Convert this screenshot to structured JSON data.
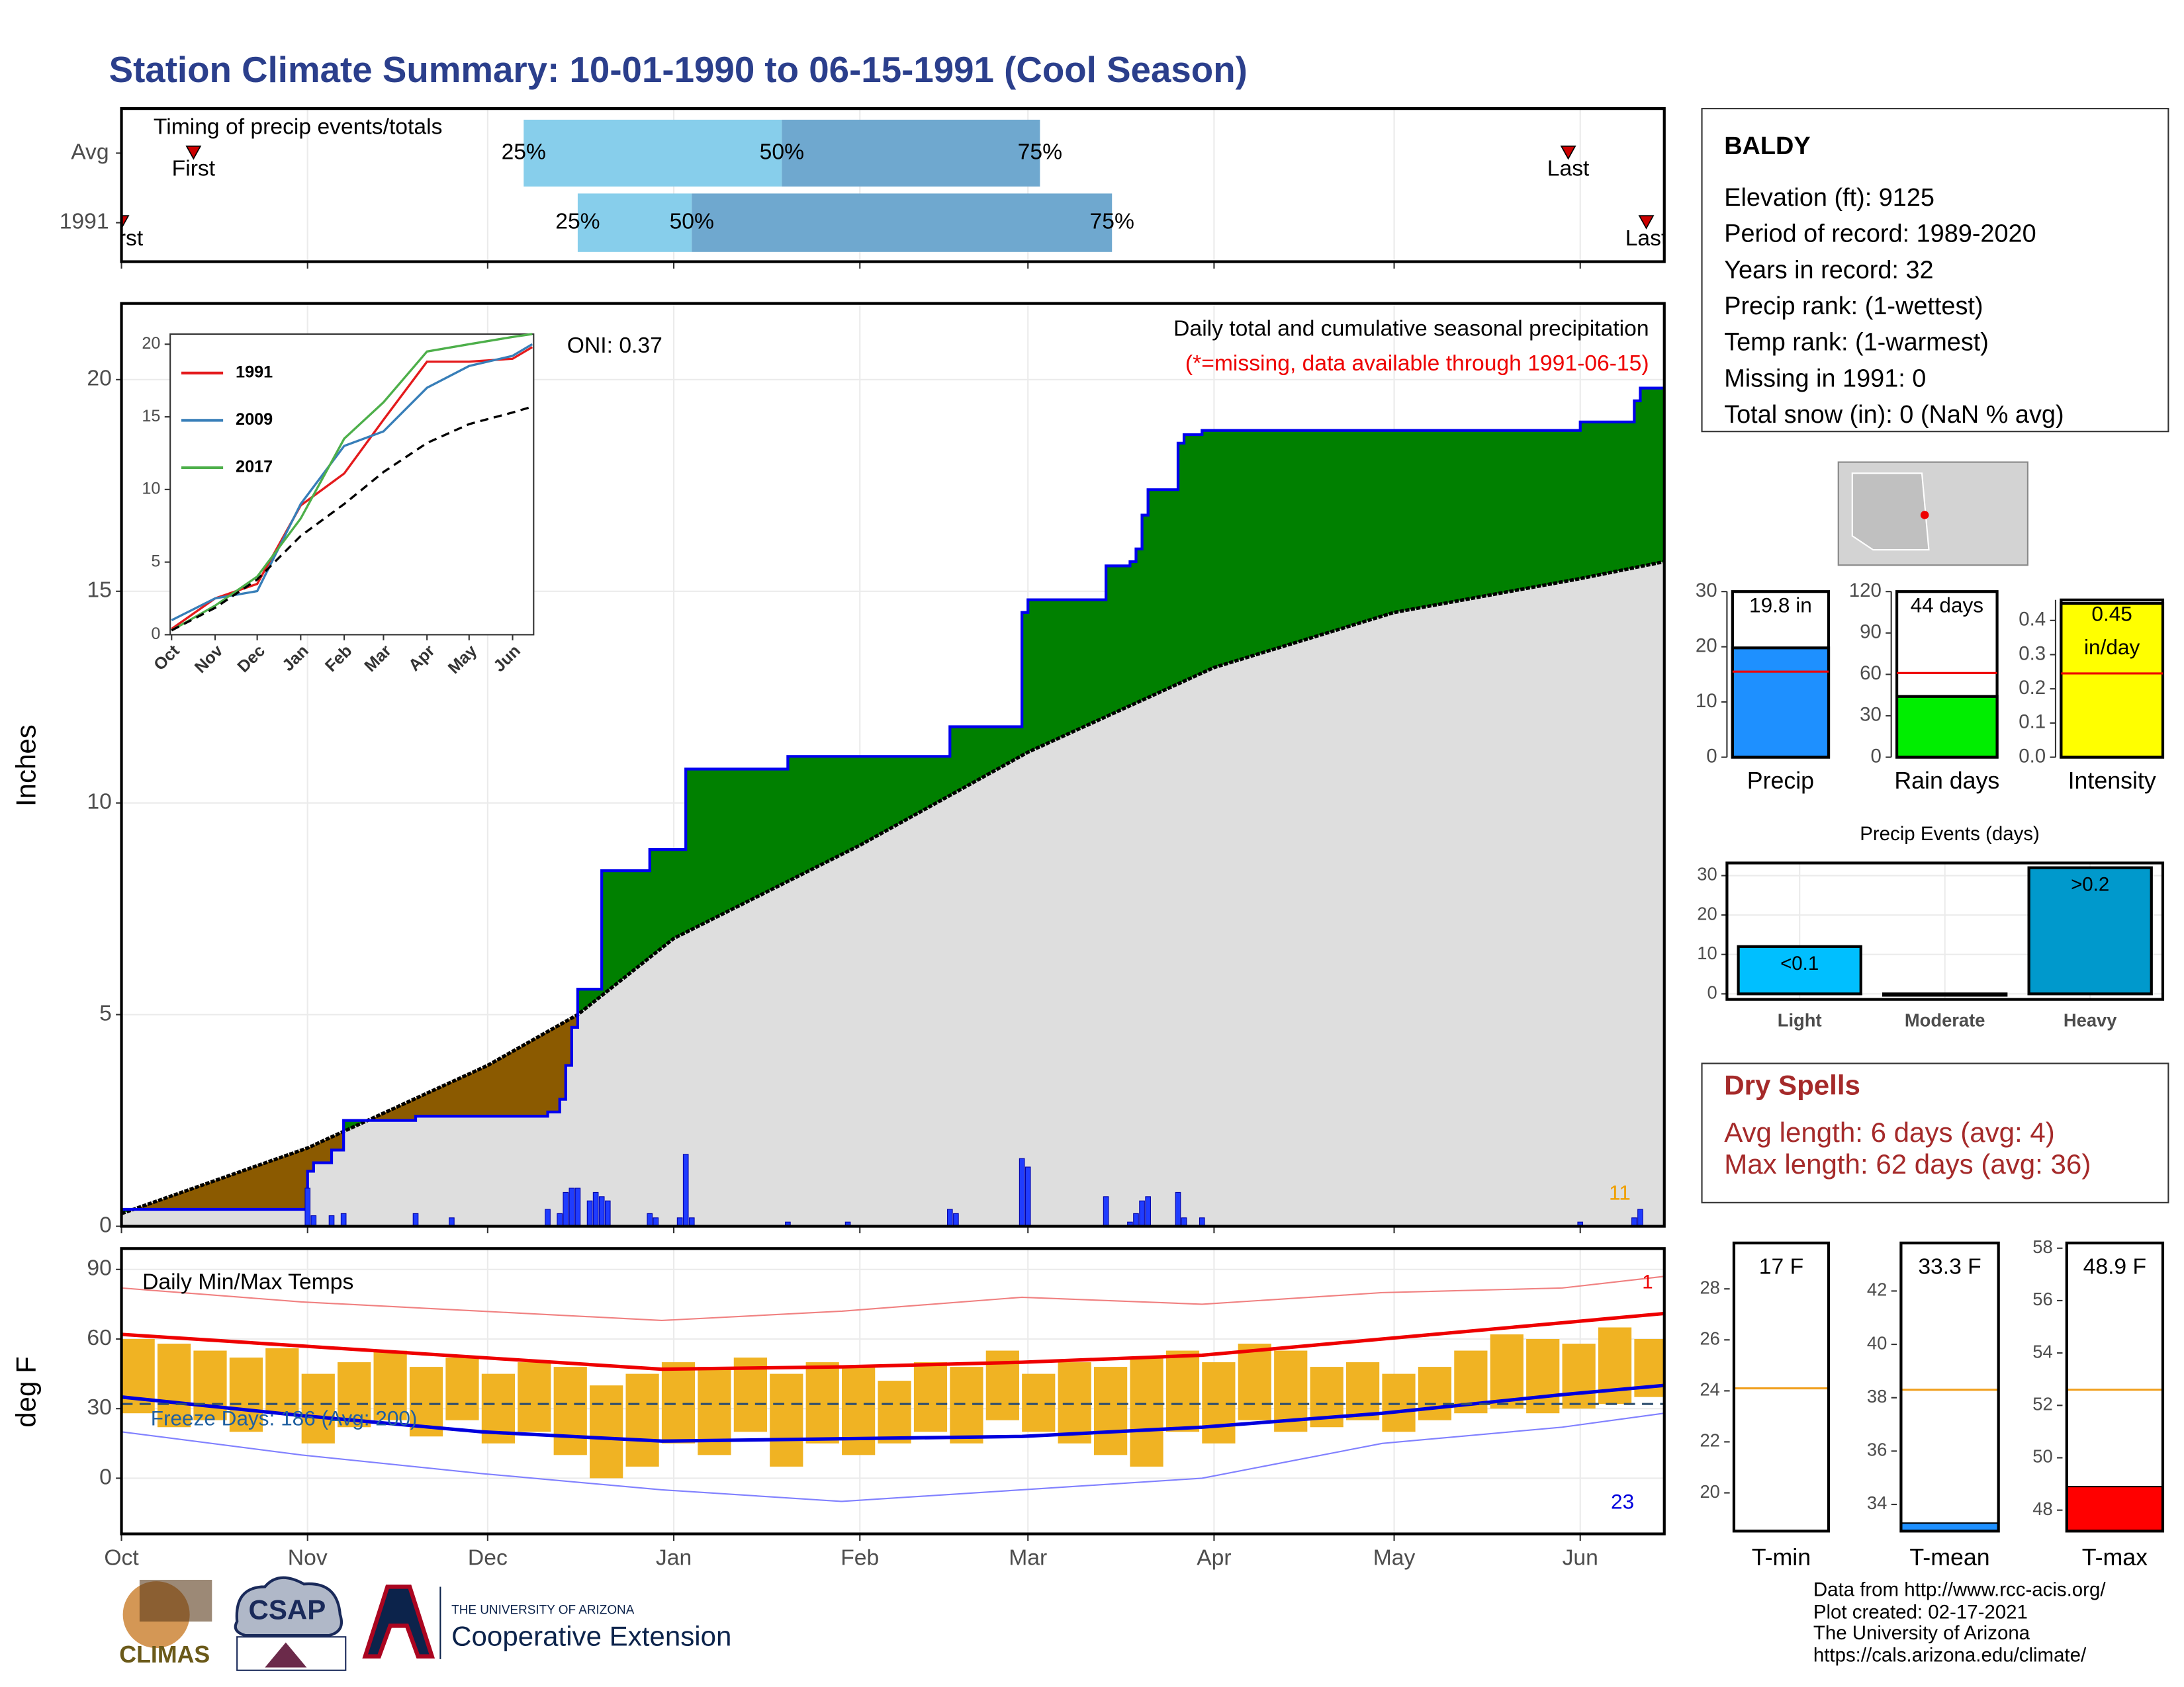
{
  "title": "Station Climate Summary: 10-01-1990 to 06-15-1991 (Cool Season)",
  "station": {
    "name": "BALDY",
    "lines": [
      "Elevation (ft): 9125",
      "Period of record: 1989-2020",
      "Years in record: 32",
      "Precip rank:  (1-wettest)",
      "Temp rank:  (1-warmest)",
      "Missing in 1991: 0",
      "Total snow (in): 0 (NaN % avg)"
    ]
  },
  "dry_spells": {
    "title": "Dry Spells",
    "lines": [
      "Avg length: 6 days (avg: 4)",
      "Max length: 62 days (avg: 36)"
    ]
  },
  "footer": {
    "lines": [
      "Data from http://www.rcc-acis.org/",
      "Plot created: 02-17-2021",
      "The University of Arizona",
      "https://cals.arizona.edu/climate/"
    ],
    "logos": [
      "CLIMAS",
      "CSAP",
      "THE UNIVERSITY OF ARIZONA",
      "Cooperative Extension"
    ]
  },
  "chart_data": [
    {
      "type": "timeline",
      "title": "Timing of precip events/totals",
      "xlim": [
        0,
        257
      ],
      "categories": [
        "Avg",
        "1991"
      ],
      "first": [
        12,
        0
      ],
      "q25": [
        67,
        76
      ],
      "q50": [
        110,
        95
      ],
      "q75": [
        153,
        165
      ],
      "last": [
        241,
        254
      ],
      "quantile_labels": [
        "25%",
        "50%",
        "75%"
      ],
      "first_label": "First",
      "last_label": "Last",
      "colors": [
        "#87ceeb",
        "#6fa8cf",
        "#cc0000"
      ]
    },
    {
      "type": "area",
      "title": "Daily total and cumulative seasonal precipitation",
      "subtitle": "(*=missing, data available through 1991-06-15)",
      "annotation": "ONI: 0.37",
      "corner_label": "11",
      "y_label": "Inches",
      "xlim": [
        0,
        257
      ],
      "ylim": [
        0,
        21.8
      ],
      "yticks": [
        0,
        5,
        10,
        15,
        20
      ],
      "normal": {
        "x": [
          0,
          31,
          61,
          76,
          92,
          123,
          151,
          182,
          212,
          243,
          257
        ],
        "values": [
          0.3,
          1.85,
          3.8,
          5.0,
          6.8,
          9.0,
          11.2,
          13.2,
          14.5,
          15.3,
          15.7
        ]
      },
      "cumulative": {
        "x": [
          0,
          31,
          32,
          35,
          37,
          49,
          71,
          73,
          74,
          75,
          76,
          80,
          88,
          94,
          111,
          138,
          150,
          151,
          164,
          168,
          169,
          170,
          171,
          176,
          177,
          180,
          243,
          252,
          253
        ],
        "values": [
          0.4,
          1.3,
          1.5,
          1.8,
          2.5,
          2.6,
          2.7,
          3.0,
          3.8,
          4.7,
          5.6,
          8.4,
          8.9,
          10.8,
          11.1,
          11.8,
          14.5,
          14.8,
          15.6,
          15.7,
          16.0,
          16.8,
          17.4,
          18.5,
          18.7,
          18.8,
          19.0,
          19.5,
          19.8
        ]
      },
      "daily": {
        "x": [
          31,
          32,
          35,
          37,
          49,
          55,
          71,
          73,
          74,
          75,
          76,
          78,
          79,
          80,
          81,
          88,
          89,
          93,
          94,
          95,
          111,
          121,
          138,
          139,
          150,
          151,
          164,
          168,
          169,
          170,
          171,
          176,
          177,
          180,
          243,
          252,
          253
        ],
        "values": [
          0.9,
          0.25,
          0.25,
          0.3,
          0.3,
          0.2,
          0.4,
          0.3,
          0.8,
          0.9,
          0.9,
          0.6,
          0.8,
          0.7,
          0.6,
          0.3,
          0.2,
          0.2,
          1.7,
          0.2,
          0.1,
          0.1,
          0.4,
          0.3,
          1.6,
          1.4,
          0.7,
          0.1,
          0.3,
          0.6,
          0.7,
          0.8,
          0.2,
          0.2,
          0.1,
          0.2,
          0.4
        ]
      },
      "colors": {
        "normal_area": "#dedede",
        "above": "#008000",
        "below": "#8b5a00",
        "line": "#0000ee",
        "bars": "#1f3cff"
      }
    },
    {
      "type": "line",
      "xlim": [
        0,
        257
      ],
      "ylim": [
        0,
        20.7
      ],
      "yticks": [
        0,
        5,
        10,
        15,
        20
      ],
      "xticks": [
        {
          "value": 0,
          "label": "Oct"
        },
        {
          "value": 31,
          "label": "Nov"
        },
        {
          "value": 61,
          "label": "Dec"
        },
        {
          "value": 92,
          "label": "Jan"
        },
        {
          "value": 123,
          "label": "Feb"
        },
        {
          "value": 151,
          "label": "Mar"
        },
        {
          "value": 182,
          "label": "Apr"
        },
        {
          "value": 212,
          "label": "May"
        },
        {
          "value": 243,
          "label": "Jun"
        }
      ],
      "x": [
        0,
        31,
        61,
        92,
        123,
        151,
        182,
        212,
        243,
        257
      ],
      "series": [
        {
          "name": "1991",
          "color": "#e41a1c",
          "values": [
            0.4,
            2.5,
            3.5,
            8.9,
            11.1,
            14.8,
            18.8,
            18.8,
            19.0,
            19.8
          ]
        },
        {
          "name": "2009",
          "color": "#377eb8",
          "values": [
            1.0,
            2.5,
            3.0,
            9.0,
            13.0,
            14.0,
            17.0,
            18.5,
            19.2,
            20.0
          ]
        },
        {
          "name": "2017",
          "color": "#4daf4a",
          "values": [
            0.3,
            2.0,
            4.0,
            8.0,
            13.5,
            16.0,
            19.5,
            20.0,
            20.5,
            20.7
          ]
        },
        {
          "color": "#000000",
          "values": [
            0.3,
            1.85,
            3.8,
            6.8,
            9.0,
            11.2,
            13.2,
            14.5,
            15.3,
            15.7
          ]
        }
      ]
    },
    {
      "type": "range",
      "title": "Daily Min/Max Temps",
      "y_label": "deg F",
      "freeze_label": "Freeze Days: 186 (Avg: 200)",
      "freeze_line": 32,
      "max_label": "1",
      "min_label": "23",
      "xlim": [
        0,
        257
      ],
      "ylim": [
        -24,
        99
      ],
      "yticks": [
        0,
        30,
        60,
        90
      ],
      "xticks": [
        {
          "value": 0,
          "label": "Oct"
        },
        {
          "value": 31,
          "label": "Nov"
        },
        {
          "value": 61,
          "label": "Dec"
        },
        {
          "value": 92,
          "label": "Jan"
        },
        {
          "value": 123,
          "label": "Feb"
        },
        {
          "value": 151,
          "label": "Mar"
        },
        {
          "value": 182,
          "label": "Apr"
        },
        {
          "value": 212,
          "label": "May"
        },
        {
          "value": 243,
          "label": "Jun"
        }
      ],
      "daily": {
        "x": [
          0,
          6,
          12,
          18,
          24,
          30,
          36,
          42,
          48,
          54,
          60,
          66,
          72,
          78,
          84,
          90,
          96,
          102,
          108,
          114,
          120,
          126,
          132,
          138,
          144,
          150,
          156,
          162,
          168,
          174,
          180,
          186,
          192,
          198,
          204,
          210,
          216,
          222,
          228,
          234,
          240,
          246,
          252
        ],
        "max": [
          60,
          58,
          55,
          52,
          56,
          45,
          50,
          55,
          48,
          52,
          45,
          50,
          48,
          40,
          45,
          50,
          48,
          52,
          45,
          50,
          48,
          42,
          50,
          48,
          55,
          45,
          50,
          48,
          52,
          55,
          50,
          58,
          55,
          48,
          50,
          45,
          48,
          55,
          62,
          60,
          58,
          65,
          60
        ],
        "min": [
          28,
          22,
          25,
          20,
          28,
          15,
          22,
          25,
          18,
          25,
          15,
          20,
          10,
          0,
          5,
          15,
          10,
          20,
          5,
          15,
          10,
          15,
          20,
          15,
          25,
          20,
          15,
          10,
          5,
          20,
          15,
          25,
          20,
          22,
          25,
          20,
          25,
          28,
          30,
          28,
          30,
          32,
          35
        ]
      },
      "norm_x": [
        0,
        30,
        60,
        90,
        120,
        150,
        180,
        210,
        240,
        257
      ],
      "normal_max": [
        62,
        57,
        52,
        47,
        48,
        50,
        53,
        60,
        67,
        71
      ],
      "normal_min": [
        35,
        27,
        20,
        16,
        17,
        18,
        22,
        28,
        36,
        40
      ],
      "record_max": [
        82,
        76,
        72,
        68,
        72,
        78,
        75,
        80,
        82,
        87
      ],
      "record_min": [
        20,
        10,
        2,
        -5,
        -10,
        -5,
        0,
        15,
        22,
        28
      ],
      "colors": {
        "bars": "#f0b323",
        "normal_max": "#ee0000",
        "normal_min": "#0000dd",
        "record_max": "#f08080",
        "record_min": "#8080ff",
        "freeze": "#2f4f6f"
      }
    },
    {
      "type": "bar",
      "categories": [
        "Precip"
      ],
      "values": [
        19.8
      ],
      "value_labels": [
        "19.8 in"
      ],
      "normal": 15.5,
      "ylim": [
        0,
        30
      ],
      "yticks": [
        0,
        10,
        20,
        30
      ],
      "color": "#1e90ff"
    },
    {
      "type": "bar",
      "categories": [
        "Rain days"
      ],
      "values": [
        44
      ],
      "value_labels": [
        "44 days"
      ],
      "normal": 61,
      "ylim": [
        0,
        120
      ],
      "yticks": [
        0,
        30,
        60,
        90,
        120
      ],
      "color": "#00ee00"
    },
    {
      "type": "bar",
      "categories": [
        "Intensity"
      ],
      "values": [
        0.45
      ],
      "value_labels": [
        "0.45"
      ],
      "unit_label": "in/day",
      "normal": 0.245,
      "ylim": [
        0,
        0.46
      ],
      "yticks": [
        {
          "value": 0,
          "label": "0.0"
        },
        0.1,
        0.2,
        0.3,
        0.4
      ],
      "color": "#ffff00"
    },
    {
      "type": "events",
      "title": "Precip Events (days)",
      "categories": [
        "Light",
        "Moderate",
        "Heavy"
      ],
      "values": [
        12,
        0,
        32
      ],
      "value_labels": [
        "<0.1",
        null,
        ">0.2"
      ],
      "colors": [
        "#00bfff",
        "#0099cc",
        "#0099cc"
      ],
      "ylim": [
        -1.4,
        33.2
      ],
      "yticks": [
        0,
        10,
        20,
        30
      ]
    },
    {
      "type": "tbar",
      "categories": [
        "T-min"
      ],
      "values": [
        17
      ],
      "value_labels": [
        "17 F"
      ],
      "normal": 24.1,
      "ylim": [
        18.5,
        29.8
      ],
      "yticks": [
        20,
        22,
        24,
        26,
        28
      ],
      "color": "#1e90ff"
    },
    {
      "type": "tbar",
      "categories": [
        "T-mean"
      ],
      "values": [
        33.3
      ],
      "value_labels": [
        "33.3 F"
      ],
      "normal": 38.3,
      "ylim": [
        33,
        43.8
      ],
      "yticks": [
        34,
        36,
        38,
        40,
        42
      ],
      "color": "#1e90ff"
    },
    {
      "type": "tbar",
      "categories": [
        "T-max"
      ],
      "values": [
        48.9
      ],
      "value_labels": [
        "48.9 F"
      ],
      "normal": 52.6,
      "ylim": [
        47.2,
        58.2
      ],
      "yticks": [
        48,
        50,
        52,
        54,
        56,
        58
      ],
      "color": "#ff0000"
    }
  ]
}
